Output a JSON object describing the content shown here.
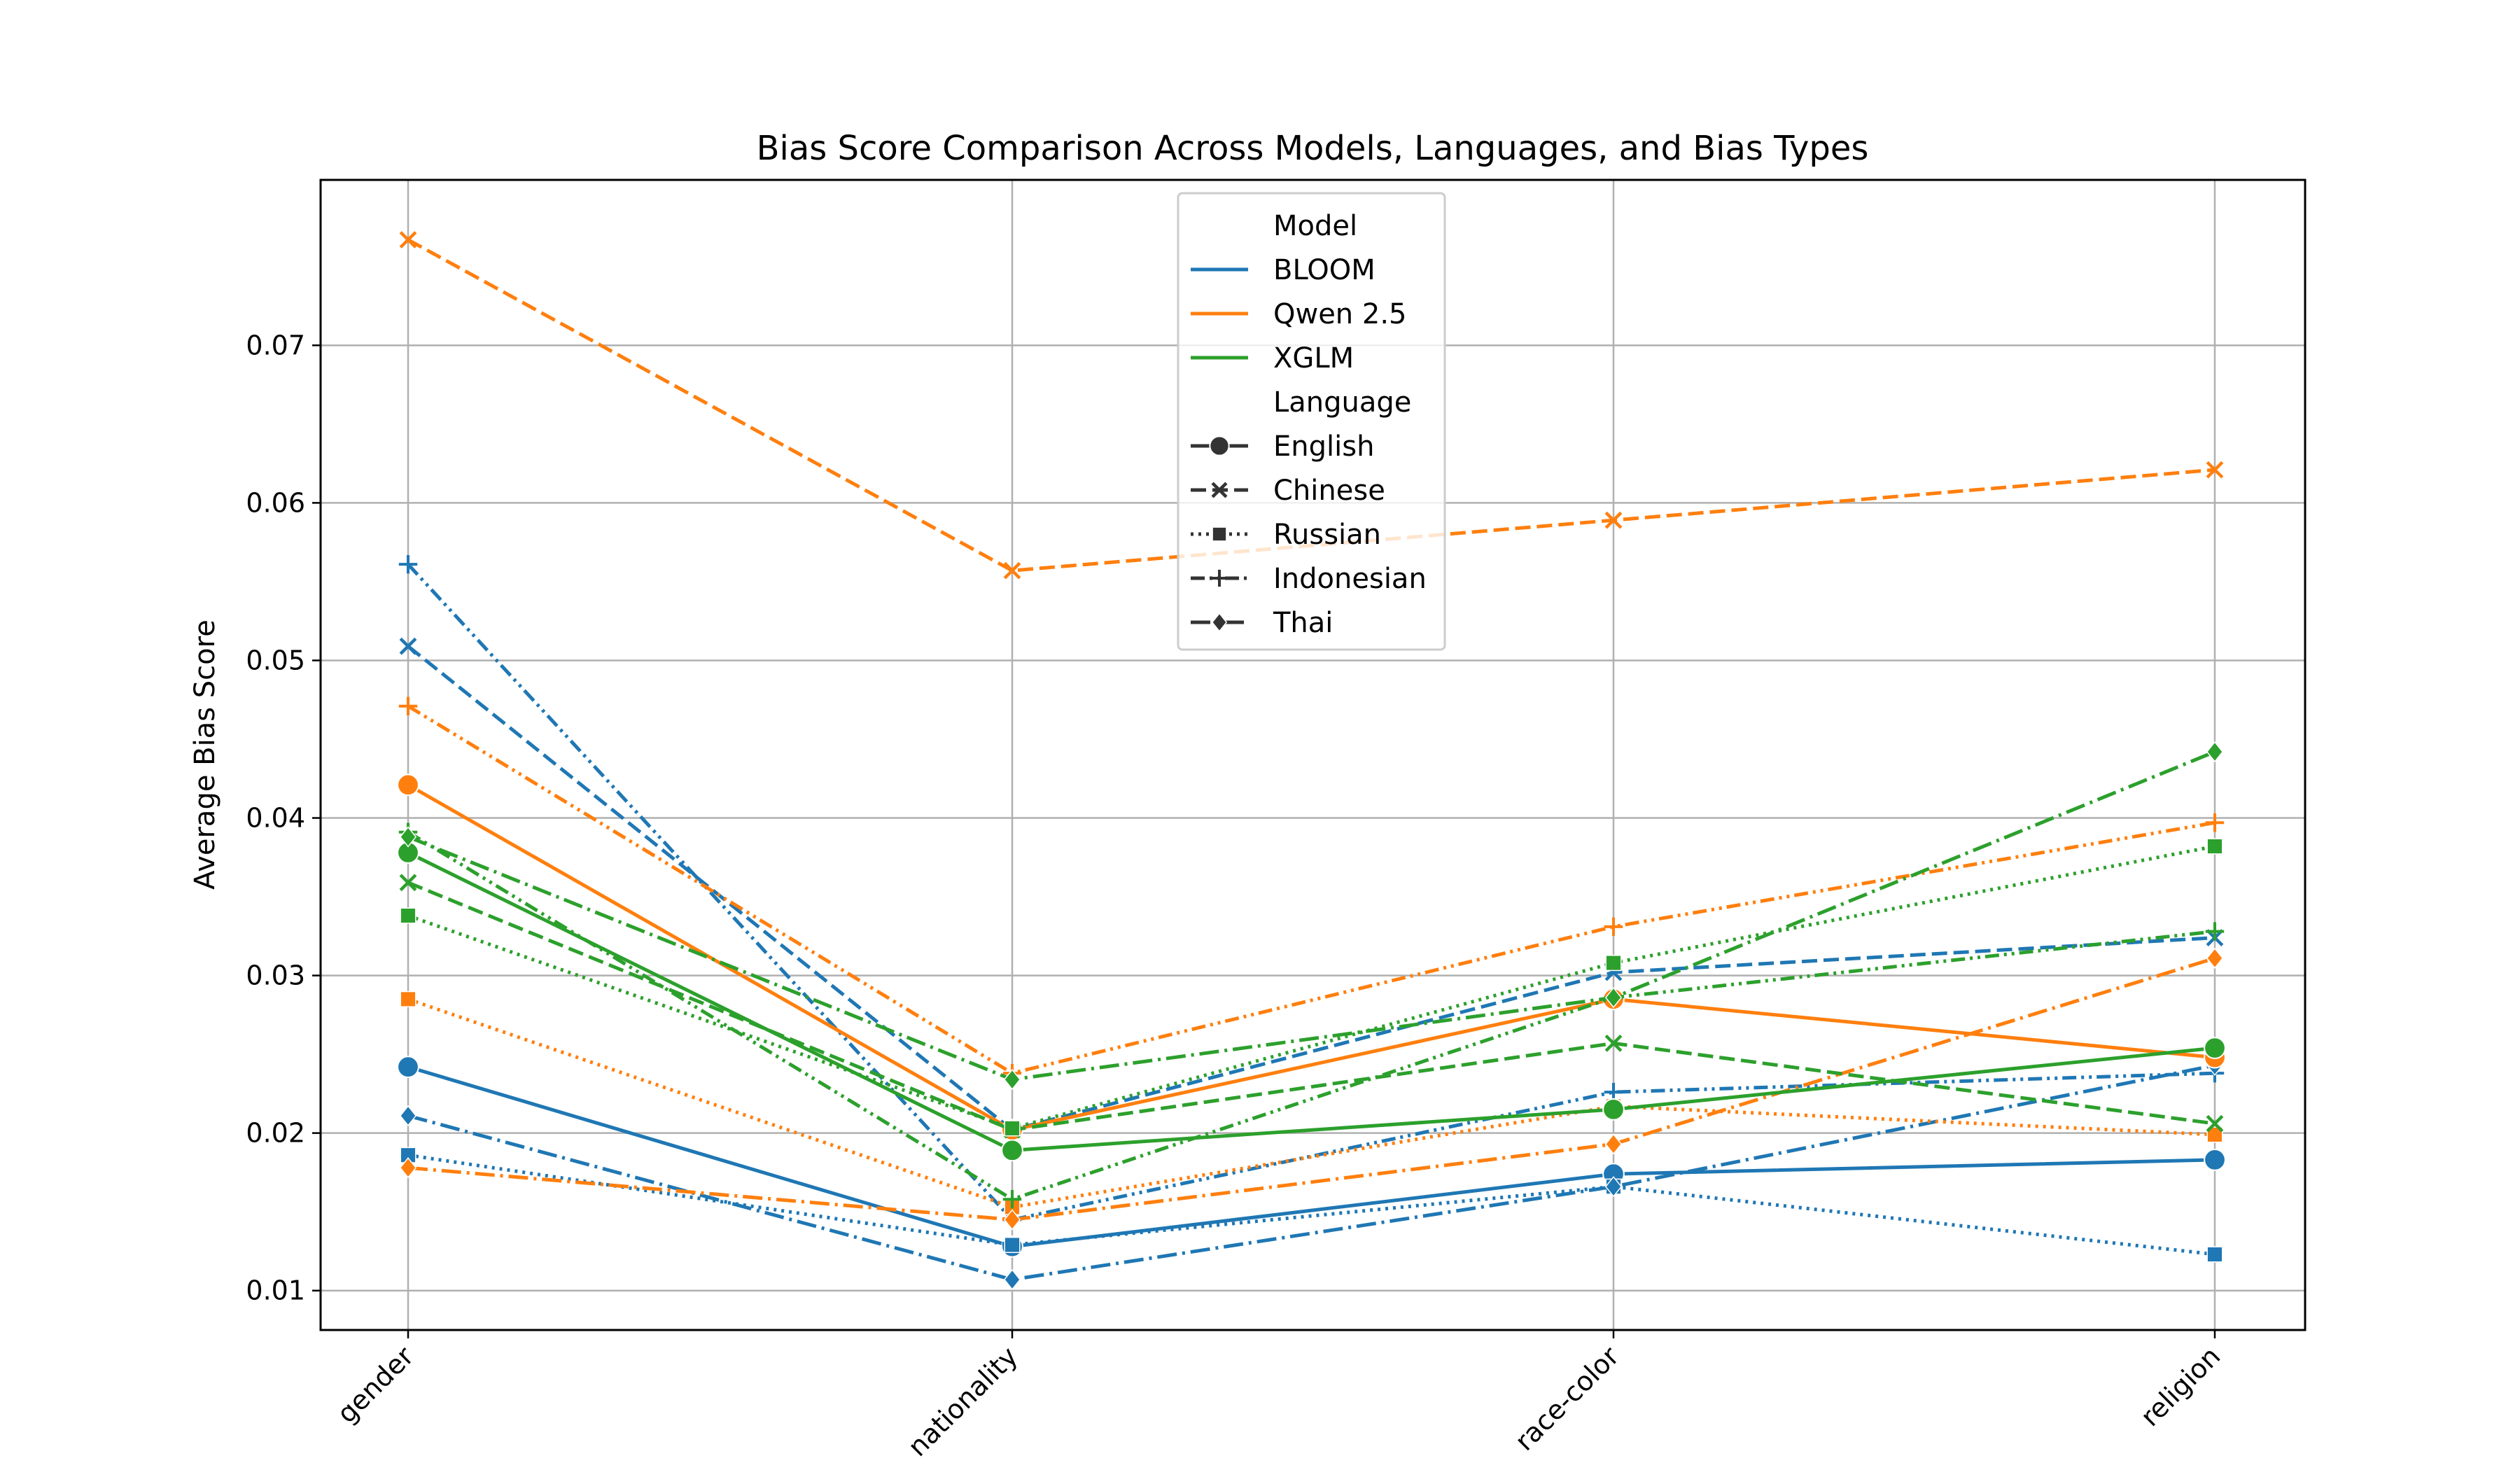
{
  "chart_data": {
    "type": "line",
    "title": "Bias Score Comparison Across Models, Languages, and Bias Types",
    "xlabel": "",
    "ylabel": "Average Bias Score",
    "categories": [
      "gender",
      "nationality",
      "race-color",
      "religion"
    ],
    "ylim": [
      0.0075,
      0.0805
    ],
    "yticks": [
      0.01,
      0.02,
      0.03,
      0.04,
      0.05,
      0.06,
      0.07
    ],
    "ytick_labels": [
      "0.01",
      "0.02",
      "0.03",
      "0.04",
      "0.05",
      "0.06",
      "0.07"
    ],
    "grid": true,
    "legend_position": "top-center",
    "legend": {
      "model_title": "Model",
      "language_title": "Language",
      "models": [
        {
          "name": "BLOOM",
          "color": "#1f77b4"
        },
        {
          "name": "Qwen 2.5",
          "color": "#ff7f0e"
        },
        {
          "name": "XGLM",
          "color": "#2ca02c"
        }
      ],
      "languages": [
        {
          "name": "English",
          "dash": "solid",
          "marker": "circle"
        },
        {
          "name": "Chinese",
          "dash": "dashed",
          "marker": "x"
        },
        {
          "name": "Russian",
          "dash": "dotted",
          "marker": "square"
        },
        {
          "name": "Indonesian",
          "dash": "dashdotdot",
          "marker": "plus"
        },
        {
          "name": "Thai",
          "dash": "dashdot",
          "marker": "diamond"
        }
      ]
    },
    "series": [
      {
        "model": "BLOOM",
        "language": "English",
        "values": [
          0.0242,
          0.0128,
          0.0174,
          0.0183
        ]
      },
      {
        "model": "BLOOM",
        "language": "Chinese",
        "values": [
          0.0509,
          0.0202,
          0.0302,
          0.0324
        ]
      },
      {
        "model": "BLOOM",
        "language": "Russian",
        "values": [
          0.0186,
          0.0129,
          0.0166,
          0.0123
        ]
      },
      {
        "model": "BLOOM",
        "language": "Indonesian",
        "values": [
          0.0561,
          0.0145,
          0.0226,
          0.0238
        ]
      },
      {
        "model": "BLOOM",
        "language": "Thai",
        "values": [
          0.0211,
          0.0107,
          0.0166,
          0.0243
        ]
      },
      {
        "model": "Qwen 2.5",
        "language": "English",
        "values": [
          0.0421,
          0.0202,
          0.0285,
          0.0248
        ]
      },
      {
        "model": "Qwen 2.5",
        "language": "Chinese",
        "values": [
          0.0767,
          0.0557,
          0.0589,
          0.0621
        ]
      },
      {
        "model": "Qwen 2.5",
        "language": "Russian",
        "values": [
          0.0285,
          0.0153,
          0.0217,
          0.0199
        ]
      },
      {
        "model": "Qwen 2.5",
        "language": "Indonesian",
        "values": [
          0.0471,
          0.0238,
          0.0331,
          0.0397
        ]
      },
      {
        "model": "Qwen 2.5",
        "language": "Thai",
        "values": [
          0.0178,
          0.0145,
          0.0193,
          0.0311
        ]
      },
      {
        "model": "XGLM",
        "language": "English",
        "values": [
          0.0378,
          0.0189,
          0.0215,
          0.0254
        ]
      },
      {
        "model": "XGLM",
        "language": "Chinese",
        "values": [
          0.0359,
          0.0202,
          0.0257,
          0.0206
        ]
      },
      {
        "model": "XGLM",
        "language": "Russian",
        "values": [
          0.0338,
          0.0203,
          0.0308,
          0.0382
        ]
      },
      {
        "model": "XGLM",
        "language": "Indonesian",
        "values": [
          0.0391,
          0.0158,
          0.0286,
          0.0328
        ]
      },
      {
        "model": "XGLM",
        "language": "Thai",
        "values": [
          0.0388,
          0.0234,
          0.0286,
          0.0442
        ]
      }
    ]
  }
}
